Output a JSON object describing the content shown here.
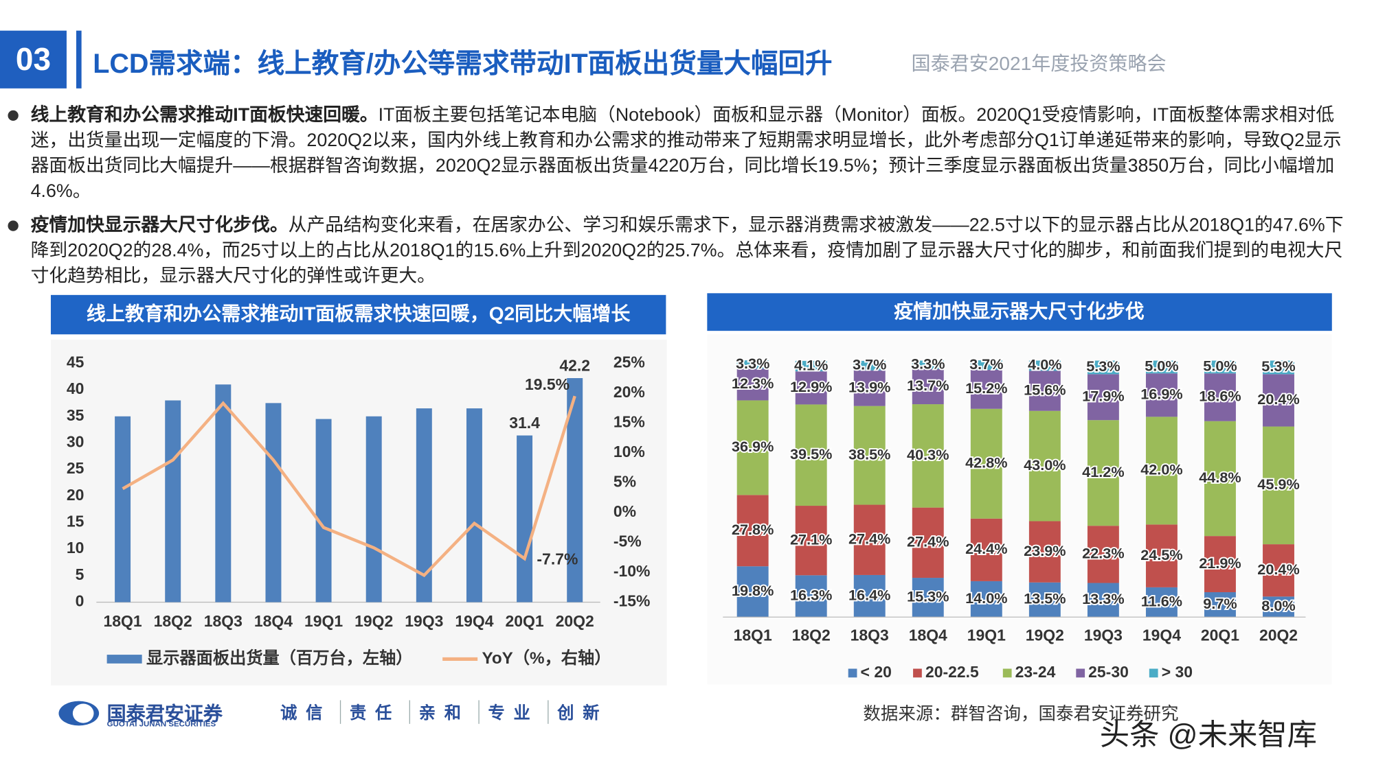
{
  "header": {
    "number": "03",
    "title": "LCD需求端：线上教育/办公等需求带动IT面板出货量大幅回升",
    "event": "国泰君安2021年度投资策略会"
  },
  "bullets": [
    {
      "lead": "线上教育和办公需求推动IT面板快速回暖。",
      "text": "IT面板主要包括笔记本电脑（Notebook）面板和显示器（Monitor）面板。2020Q1受疫情影响，IT面板整体需求相对低迷，出货量出现一定幅度的下滑。2020Q2以来，国内外线上教育和办公需求的推动带来了短期需求明显增长，此外考虑部分Q1订单递延带来的影响，导致Q2显示器面板出货同比大幅提升——根据群智咨询数据，2020Q2显示器面板出货量4220万台，同比增长19.5%；预计三季度显示器面板出货量3850万台，同比小幅增加4.6%。"
    },
    {
      "lead": "疫情加快显示器大尺寸化步伐。",
      "text": "从产品结构变化来看，在居家办公、学习和娱乐需求下，显示器消费需求被激发——22.5寸以下的显示器占比从2018Q1的47.6%下降到2020Q2的28.4%，而25寸以上的占比从2018Q1的15.6%上升到2020Q2的25.7%。总体来看，疫情加剧了显示器大尺寸化的脚步，和前面我们提到的电视大尺寸化趋势相比，显示器大尺寸化的弹性或许更大。"
    }
  ],
  "chart_data": [
    {
      "type": "combo",
      "title": "线上教育和办公需求推动IT面板需求快速回暖，Q2同比大幅增长",
      "categories": [
        "18Q1",
        "18Q2",
        "18Q3",
        "18Q4",
        "19Q1",
        "19Q2",
        "19Q3",
        "19Q4",
        "20Q1",
        "20Q2"
      ],
      "series": [
        {
          "name": "显示器面板出货量（百万台，左轴）",
          "type": "bar",
          "color": "#4f81bd",
          "values": [
            35,
            38,
            41,
            37.5,
            34.5,
            35,
            36.5,
            36.5,
            31.4,
            42.2
          ],
          "value_labels": [
            null,
            null,
            null,
            null,
            null,
            null,
            null,
            null,
            "31.4",
            "42.2"
          ]
        },
        {
          "name": "YoY（%，右轴）",
          "type": "line",
          "axis": "y2",
          "color": "#f4b183",
          "values": [
            4,
            8.8,
            18.3,
            8.8,
            -2.5,
            -5.9,
            -10.5,
            -1.8,
            -7.7,
            19.5
          ],
          "value_labels": [
            null,
            null,
            null,
            null,
            null,
            null,
            null,
            null,
            "-7.7%",
            "19.5%"
          ]
        }
      ],
      "ylim": [
        0,
        45
      ],
      "yticks": [
        0,
        5,
        10,
        15,
        20,
        25,
        30,
        35,
        40,
        45
      ],
      "y2lim": [
        -15,
        25
      ],
      "y2ticks": [
        {
          "value": -15,
          "label": "-15%"
        },
        {
          "value": -10,
          "label": "-10%"
        },
        {
          "value": -5,
          "label": "-5%"
        },
        {
          "value": 0,
          "label": "0%"
        },
        {
          "value": 5,
          "label": "5%"
        },
        {
          "value": 10,
          "label": "10%"
        },
        {
          "value": 15,
          "label": "15%"
        },
        {
          "value": 20,
          "label": "20%"
        },
        {
          "value": 25,
          "label": "25%"
        }
      ],
      "grid": false,
      "legend": "bottom"
    },
    {
      "type": "stacked",
      "title": "疫情加快显示器大尺寸化步伐",
      "categories": [
        "18Q1",
        "18Q2",
        "18Q3",
        "18Q4",
        "19Q1",
        "19Q2",
        "19Q3",
        "19Q4",
        "20Q1",
        "20Q2"
      ],
      "ylim": [
        0,
        100
      ],
      "series": [
        {
          "name": "< 20",
          "color": "#4f81bd",
          "values": [
            19.8,
            16.3,
            16.4,
            15.3,
            14.0,
            13.5,
            13.3,
            11.6,
            9.7,
            8.0
          ],
          "value_labels": [
            "19.8%",
            "16.3%",
            "16.4%",
            "15.3%",
            "14.0%",
            "13.5%",
            "13.3%",
            "11.6%",
            "9.7%",
            "8.0%"
          ]
        },
        {
          "name": "20-22.5",
          "color": "#c0504d",
          "values": [
            27.8,
            27.1,
            27.4,
            27.4,
            24.4,
            23.9,
            22.3,
            24.5,
            21.9,
            20.4
          ],
          "value_labels": [
            "27.8%",
            "27.1%",
            "27.4%",
            "27.4%",
            "24.4%",
            "23.9%",
            "22.3%",
            "24.5%",
            "21.9%",
            "20.4%"
          ]
        },
        {
          "name": "23-24",
          "color": "#9bbb59",
          "values": [
            36.9,
            39.5,
            38.5,
            40.3,
            42.8,
            43.0,
            41.2,
            42.0,
            44.8,
            45.9
          ],
          "value_labels": [
            "36.9%",
            "39.5%",
            "38.5%",
            "40.3%",
            "42.8%",
            "43.0%",
            "41.2%",
            "42.0%",
            "44.8%",
            "45.9%"
          ]
        },
        {
          "name": "25-30",
          "color": "#8064a2",
          "values": [
            12.3,
            12.9,
            13.9,
            13.7,
            15.2,
            15.6,
            17.9,
            16.9,
            18.6,
            20.4
          ],
          "value_labels": [
            "12.3%",
            "12.9%",
            "13.9%",
            "13.7%",
            "15.2%",
            "15.6%",
            "17.9%",
            "16.9%",
            "18.6%",
            "20.4%"
          ]
        },
        {
          "name": "> 30",
          "color": "#4bacc6",
          "values": [
            3.3,
            4.1,
            3.7,
            3.3,
            3.7,
            4.0,
            5.3,
            5.0,
            5.0,
            5.3
          ],
          "value_labels": [
            "3.3%",
            "4.1%",
            "3.7%",
            "3.3%",
            "3.7%",
            "4.0%",
            "5.3%",
            "5.0%",
            "5.0%",
            "5.3%"
          ]
        }
      ],
      "legend": "bottom"
    }
  ],
  "footer": {
    "company": "国泰君安证券",
    "company_en": "GUOTAI JUNAN SECURITIES",
    "slogan": [
      "诚信",
      "责任",
      "亲和",
      "专业",
      "创新"
    ],
    "source": "数据来源：群智咨询，国泰君安证券研究",
    "watermark": "头条 @未来智库"
  }
}
